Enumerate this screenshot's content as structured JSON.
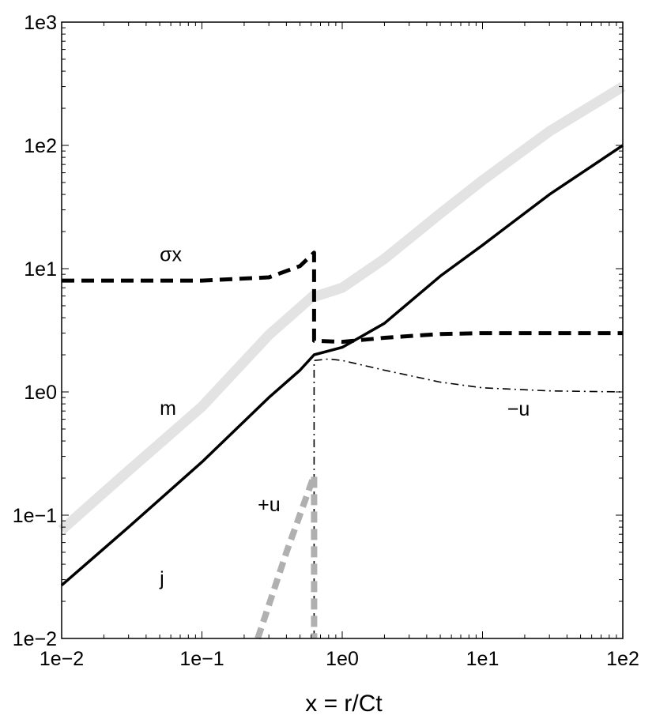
{
  "chart_data": {
    "type": "line",
    "xlabel": "x = r/Ct",
    "ylabel": "",
    "x_scale": "log",
    "y_scale": "log",
    "xlim": [
      0.01,
      100
    ],
    "ylim": [
      0.01,
      1000
    ],
    "grid": false,
    "x_ticks": [
      {
        "value": 0.01,
        "label": "1e−2"
      },
      {
        "value": 0.1,
        "label": "1e−1"
      },
      {
        "value": 1,
        "label": "1e0"
      },
      {
        "value": 10,
        "label": "1e1"
      },
      {
        "value": 100,
        "label": "1e2"
      }
    ],
    "y_ticks": [
      {
        "value": 0.01,
        "label": "1e−2"
      },
      {
        "value": 0.1,
        "label": "1e−1"
      },
      {
        "value": 1,
        "label": "1e0"
      },
      {
        "value": 10,
        "label": "1e1"
      },
      {
        "value": 100,
        "label": "1e2"
      },
      {
        "value": 1000,
        "label": "1e3"
      }
    ],
    "series": [
      {
        "name": "m",
        "style": "solid-thick",
        "color": "#e3e3e3",
        "points": [
          [
            0.01,
            0.076
          ],
          [
            0.03,
            0.23
          ],
          [
            0.1,
            0.76
          ],
          [
            0.3,
            2.9
          ],
          [
            0.63,
            6.1
          ],
          [
            0.63,
            5.9
          ],
          [
            1,
            7.0
          ],
          [
            2,
            12
          ],
          [
            5,
            28
          ],
          [
            10,
            52
          ],
          [
            30,
            130
          ],
          [
            100,
            300
          ]
        ]
      },
      {
        "name": "j",
        "style": "solid",
        "color": "#000000",
        "points": [
          [
            0.01,
            0.027
          ],
          [
            0.03,
            0.08
          ],
          [
            0.1,
            0.27
          ],
          [
            0.3,
            0.9
          ],
          [
            0.5,
            1.5
          ],
          [
            0.63,
            2.0
          ],
          [
            1,
            2.3
          ],
          [
            2,
            3.6
          ],
          [
            5,
            8.7
          ],
          [
            10,
            15.5
          ],
          [
            30,
            40
          ],
          [
            100,
            100
          ]
        ]
      },
      {
        "name": "σx",
        "style": "dashed-thick",
        "color": "#000000",
        "points": [
          [
            0.01,
            8.0
          ],
          [
            0.1,
            8.0
          ],
          [
            0.3,
            8.5
          ],
          [
            0.5,
            10.5
          ],
          [
            0.63,
            13.5
          ],
          [
            0.63,
            2.6
          ],
          [
            1,
            2.55
          ],
          [
            2,
            2.75
          ],
          [
            5,
            2.95
          ],
          [
            10,
            3.0
          ],
          [
            100,
            3.0
          ]
        ]
      },
      {
        "name": "−u",
        "style": "dashdot",
        "color": "#000000",
        "points": [
          [
            0.63,
            0.01
          ],
          [
            0.63,
            1.8
          ],
          [
            0.8,
            1.85
          ],
          [
            1,
            1.8
          ],
          [
            2,
            1.5
          ],
          [
            5,
            1.2
          ],
          [
            10,
            1.08
          ],
          [
            30,
            1.02
          ],
          [
            100,
            1.0
          ]
        ]
      },
      {
        "name": "+u",
        "style": "dotted-thick",
        "color": "#b0b0b0",
        "points": [
          [
            0.25,
            0.01
          ],
          [
            0.4,
            0.05
          ],
          [
            0.63,
            0.21
          ],
          [
            0.63,
            0.01
          ]
        ]
      }
    ],
    "annotations": [
      {
        "text": "σx",
        "x": 0.05,
        "y": 11.5
      },
      {
        "text": "m",
        "x": 0.05,
        "y": 0.65
      },
      {
        "text": "j",
        "x": 0.05,
        "y": 0.027
      },
      {
        "text": "+u",
        "x": 0.25,
        "y": 0.108
      },
      {
        "text": "−u",
        "x": 15,
        "y": 0.64
      }
    ]
  }
}
